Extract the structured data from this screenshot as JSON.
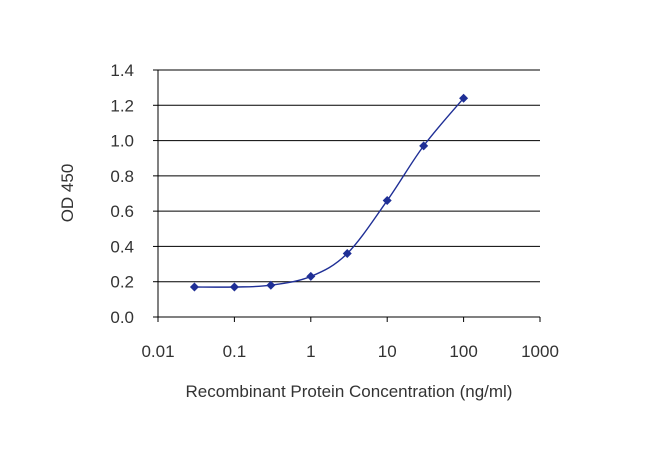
{
  "chart_data": {
    "type": "line",
    "title": "",
    "xlabel": "Recombinant Protein Concentration (ng/ml)",
    "ylabel": "OD 450",
    "x_scale": "log",
    "xlim": [
      0.01,
      1000
    ],
    "ylim": [
      0.0,
      1.4
    ],
    "x_ticks": [
      "0.01",
      "0.1",
      "1",
      "10",
      "100",
      "1000"
    ],
    "x_tick_values": [
      0.01,
      0.1,
      1,
      10,
      100,
      1000
    ],
    "y_ticks": [
      "0.0",
      "0.2",
      "0.4",
      "0.6",
      "0.8",
      "1.0",
      "1.2",
      "1.4"
    ],
    "y_tick_values": [
      0.0,
      0.2,
      0.4,
      0.6,
      0.8,
      1.0,
      1.2,
      1.4
    ],
    "grid": "horizontal",
    "legend": "none",
    "series": [
      {
        "x": [
          0.03,
          0.1,
          0.3,
          1,
          3,
          10,
          30,
          100
        ],
        "y": [
          0.17,
          0.17,
          0.18,
          0.23,
          0.36,
          0.66,
          0.97,
          1.24
        ],
        "color": "#1f2f96",
        "marker": "diamond"
      }
    ]
  }
}
